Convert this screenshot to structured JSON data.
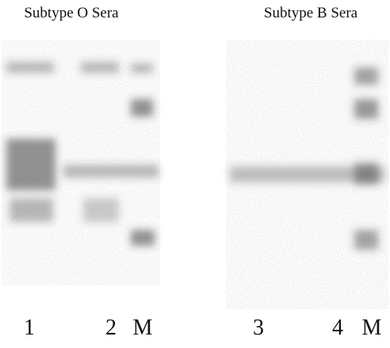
{
  "panels": [
    {
      "title": "Subtype O Sera",
      "lanes": [
        "1",
        "2",
        "M"
      ]
    },
    {
      "title": "Subtype B Sera",
      "lanes": [
        "3",
        "4",
        "M"
      ]
    }
  ]
}
